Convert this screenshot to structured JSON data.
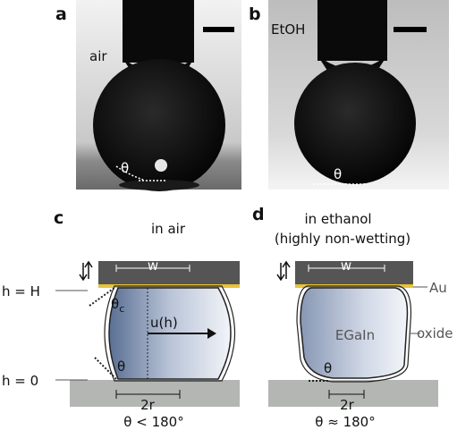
{
  "panels": [
    {
      "label": "a",
      "medium": "air",
      "angle": "θ"
    },
    {
      "label": "b",
      "medium": "EtOH",
      "angle": "θ"
    },
    {
      "label": "c",
      "title": "in air",
      "width": "w",
      "top_height": "h = H",
      "top_angle": "θ",
      "top_angle_sub": "c",
      "velocity": "u(h)",
      "bottom_angle": "θ",
      "bottom_height": "h = 0",
      "radius": "2r",
      "condition": "θ < 180°"
    },
    {
      "label": "d",
      "title": "in ethanol",
      "subtitle": "(highly non-wetting)",
      "width": "w",
      "electrode": "Au",
      "liquid": "EGaIn",
      "shell": "oxide",
      "bottom_angle": "θ",
      "radius": "2r",
      "condition": "θ ≈ 180°"
    }
  ]
}
